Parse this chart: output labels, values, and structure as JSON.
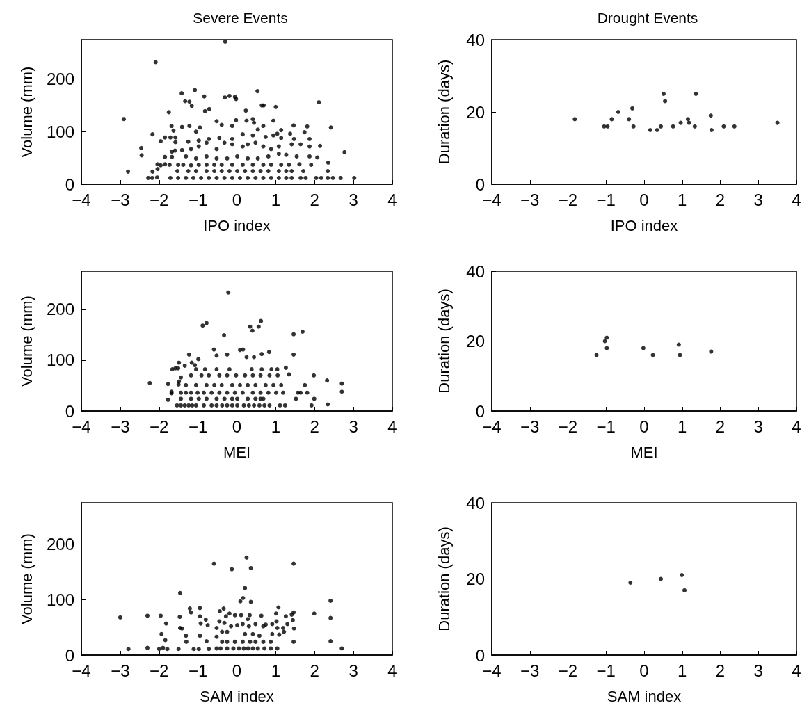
{
  "chart_data": [
    {
      "type": "scatter",
      "title": "Severe Events",
      "xlabel": "IPO index",
      "ylabel": "Volume (mm)",
      "color": "#000000",
      "marker": "circle",
      "xlim": [
        -4,
        4
      ],
      "xticks": [
        {
          "value": -4,
          "label": "−4"
        },
        {
          "value": -3,
          "label": "−3"
        },
        {
          "value": -2,
          "label": "−2"
        },
        {
          "value": -1,
          "label": "−1"
        },
        0,
        1,
        2,
        3,
        4
      ],
      "ylim": [
        0,
        275
      ],
      "yticks": [
        0,
        100,
        200
      ],
      "x": [
        -0.3,
        -2.09,
        -2.91,
        -2.8,
        -2.46,
        -2.45,
        -2.17,
        -2.28,
        -2.18,
        -2.05,
        -2.17,
        -2.04,
        -2.04,
        -1.96,
        -1.85,
        -1.73,
        -1.96,
        -1.85,
        -1.75,
        -1.71,
        -1.68,
        -1.63,
        -1.58,
        -1.58,
        -1.85,
        -1.67,
        -1.67,
        -1.59,
        -1.71,
        -1.51,
        -1.31,
        -1.12,
        -0.92,
        -0.72,
        -0.52,
        -0.32,
        -0.12,
        0.08,
        0.28,
        0.48,
        0.68,
        0.88,
        1.08,
        1.27,
        1.41,
        1.64,
        1.77,
        2.04,
        2.17,
        2.34,
        2.47,
        2.67,
        3.02,
        -1.53,
        -1.25,
        -1.05,
        -0.78,
        -0.58,
        -0.39,
        -0.19,
        0.01,
        0.21,
        0.41,
        0.61,
        0.81,
        1.08,
        1.27,
        1.41,
        1.71,
        2.34,
        -1.51,
        -1.38,
        -1.18,
        -0.98,
        -0.78,
        -0.58,
        -0.39,
        -0.12,
        0.15,
        0.41,
        0.68,
        0.88,
        1.14,
        1.34,
        1.61,
        1.91,
        2.35,
        -1.31,
        -1.05,
        -0.78,
        -0.52,
        -0.25,
        0.01,
        0.28,
        0.54,
        0.81,
        1.08,
        1.27,
        1.54,
        1.87,
        2.07,
        -1.41,
        -1.18,
        -0.98,
        -0.78,
        -0.52,
        -0.32,
        -0.12,
        0.15,
        0.28,
        0.48,
        0.68,
        0.88,
        1.08,
        1.41,
        1.64,
        1.87,
        2.14,
        2.77,
        -1.25,
        -0.98,
        -0.72,
        -0.45,
        -0.12,
        0.15,
        0.41,
        0.74,
        0.94,
        1.14,
        1.37,
        1.47,
        1.74,
        1.87,
        -1.41,
        -1.22,
        -1.05,
        -0.95,
        -0.52,
        -0.39,
        -0.12,
        -0.02,
        0.25,
        0.41,
        0.44,
        0.54,
        0.68,
        0.94,
        1.04,
        1.14,
        1.46,
        1.81,
        2.42,
        -1.42,
        -1.33,
        -1.22,
        -1.16,
        -1.08,
        -0.84,
        -0.82,
        -0.71,
        -0.31,
        -0.19,
        -0.05,
        -0.02,
        0.23,
        0.53,
        0.64,
        0.69,
        1.0,
        2.11
      ],
      "values": [
        271,
        232,
        124,
        24,
        69,
        55,
        95,
        12,
        12,
        13,
        24,
        29,
        38,
        36,
        38,
        37,
        82,
        89,
        137,
        89,
        111,
        102,
        80,
        89,
        52,
        52,
        62,
        64,
        12,
        12,
        12,
        12,
        12,
        12,
        12,
        12,
        12,
        12,
        12,
        12,
        12,
        12,
        12,
        12,
        12,
        12,
        12,
        12,
        12,
        12,
        12,
        12,
        12,
        25,
        25,
        25,
        25,
        25,
        25,
        25,
        25,
        25,
        25,
        25,
        25,
        25,
        25,
        25,
        25,
        25,
        37,
        37,
        36,
        37,
        37,
        37,
        37,
        37,
        37,
        37,
        37,
        37,
        37,
        37,
        38,
        37,
        41,
        53,
        49,
        53,
        49,
        49,
        53,
        49,
        49,
        53,
        58,
        56,
        53,
        53,
        51,
        65,
        67,
        72,
        79,
        67,
        79,
        76,
        72,
        76,
        79,
        72,
        67,
        72,
        76,
        76,
        72,
        73,
        61,
        81,
        83,
        86,
        88,
        86,
        95,
        93,
        90,
        93,
        88,
        96,
        86,
        99,
        86,
        109,
        111,
        100,
        108,
        120,
        113,
        111,
        122,
        121,
        124,
        117,
        104,
        111,
        121,
        96,
        103,
        112,
        110,
        108,
        173,
        158,
        157,
        149,
        179,
        167,
        139,
        143,
        165,
        168,
        166,
        162,
        140,
        177,
        150,
        150,
        147,
        156
      ]
    },
    {
      "type": "scatter",
      "title": "Drought Events",
      "xlabel": "IPO index",
      "ylabel": "Duration (days)",
      "color": "#000000",
      "marker": "circle",
      "xlim": [
        -4,
        4
      ],
      "xticks": [
        {
          "value": -4,
          "label": "−4"
        },
        {
          "value": -3,
          "label": "−3"
        },
        {
          "value": -2,
          "label": "−2"
        },
        {
          "value": -1,
          "label": "−1"
        },
        0,
        1,
        2,
        3,
        4
      ],
      "ylim": [
        0,
        40
      ],
      "yticks": [
        0,
        20,
        40
      ],
      "x": [
        -1.82,
        -1.05,
        -0.96,
        -0.85,
        -0.68,
        -0.4,
        -0.31,
        -0.28,
        0.16,
        0.34,
        0.44,
        0.51,
        0.55,
        0.76,
        0.96,
        1.15,
        1.18,
        1.33,
        1.36,
        1.75,
        1.77,
        2.09,
        2.37,
        3.5
      ],
      "values": [
        18,
        16,
        16,
        18,
        20,
        18,
        21,
        16,
        15,
        15,
        16,
        25,
        23,
        16,
        17,
        18,
        17,
        16,
        25,
        19,
        15,
        16,
        16,
        17
      ]
    },
    {
      "type": "scatter",
      "xlabel": "MEI",
      "ylabel": "Volume (mm)",
      "color": "#000000",
      "marker": "circle",
      "xlim": [
        -4,
        4
      ],
      "xticks": [
        {
          "value": -4,
          "label": "−4"
        },
        {
          "value": -3,
          "label": "−3"
        },
        {
          "value": -2,
          "label": "−2"
        },
        {
          "value": -1,
          "label": "−1"
        },
        0,
        1,
        2,
        3,
        4
      ],
      "ylim": [
        0,
        275
      ],
      "yticks": [
        0,
        100,
        200
      ],
      "x": [
        -2.24,
        -1.77,
        -1.77,
        -1.68,
        -1.68,
        -1.66,
        -1.58,
        -1.49,
        -1.51,
        -1.5,
        -1.49,
        -1.44,
        -1.23,
        -1.16,
        -0.99,
        -1.34,
        -1.08,
        -0.88,
        -0.78,
        -0.33,
        -0.22,
        0.34,
        0.4,
        0.56,
        0.62,
        1.46,
        1.69,
        1.46,
        -0.59,
        -0.52,
        -0.25,
        0.08,
        0.16,
        0.25,
        0.44,
        0.64,
        0.83,
        -1.54,
        -1.44,
        -1.34,
        -1.24,
        -1.15,
        -1.05,
        -0.85,
        -0.65,
        -0.52,
        -0.38,
        -0.25,
        -0.12,
        0.01,
        0.18,
        0.31,
        0.44,
        0.58,
        0.71,
        0.84,
        1.11,
        1.24,
        1.92,
        2.34,
        -1.44,
        -1.18,
        -0.98,
        -0.78,
        -0.52,
        -0.32,
        -0.12,
        0.01,
        0.28,
        0.48,
        0.61,
        0.68,
        1.52,
        1.99,
        -1.44,
        -1.31,
        -1.18,
        -1.01,
        -0.85,
        -0.65,
        -0.45,
        -0.25,
        -0.05,
        0.15,
        0.41,
        0.61,
        0.81,
        1.01,
        1.19,
        1.57,
        1.64,
        1.81,
        2.7,
        -1.31,
        -1.05,
        -0.78,
        -0.58,
        -0.39,
        -0.12,
        0.08,
        0.28,
        0.48,
        0.74,
        0.94,
        1.14,
        1.75,
        2.7,
        -1.18,
        -0.91,
        -0.72,
        -0.45,
        -0.25,
        -0.02,
        0.21,
        0.41,
        0.61,
        0.84,
        1.05,
        1.34,
        1.98,
        2.32,
        -1.05,
        -0.82,
        -0.52,
        -0.19,
        0.38,
        0.64,
        0.89,
        1.04,
        1.26
      ],
      "values": [
        55,
        53,
        22,
        38,
        35,
        82,
        84,
        95,
        84,
        52,
        58,
        66,
        111,
        95,
        102,
        89,
        90,
        168,
        173,
        149,
        233,
        166,
        158,
        166,
        177,
        151,
        156,
        111,
        121,
        109,
        111,
        120,
        121,
        106,
        106,
        112,
        116,
        11,
        11,
        11,
        11,
        11,
        11,
        11,
        11,
        11,
        11,
        11,
        11,
        11,
        11,
        11,
        11,
        11,
        11,
        11,
        11,
        11,
        11,
        13,
        24,
        24,
        24,
        24,
        24,
        24,
        24,
        24,
        24,
        24,
        24,
        24,
        24,
        24,
        36,
        36,
        36,
        36,
        36,
        36,
        36,
        36,
        36,
        36,
        36,
        36,
        36,
        36,
        36,
        36,
        36,
        36,
        38,
        51,
        51,
        51,
        51,
        51,
        51,
        51,
        51,
        51,
        51,
        51,
        51,
        51,
        54,
        70,
        70,
        70,
        70,
        70,
        70,
        70,
        70,
        70,
        70,
        70,
        72,
        70,
        60,
        82,
        82,
        82,
        82,
        82,
        82,
        82,
        82,
        85
      ]
    },
    {
      "type": "scatter",
      "xlabel": "MEI",
      "ylabel": "Duration (days)",
      "color": "#000000",
      "marker": "circle",
      "xlim": [
        -4,
        4
      ],
      "xticks": [
        {
          "value": -4,
          "label": "−4"
        },
        {
          "value": -3,
          "label": "−3"
        },
        {
          "value": -2,
          "label": "−2"
        },
        {
          "value": -1,
          "label": "−1"
        },
        0,
        1,
        2,
        3,
        4
      ],
      "ylim": [
        0,
        40
      ],
      "yticks": [
        0,
        20,
        40
      ],
      "x": [
        -1.25,
        -1.03,
        -0.98,
        -0.98,
        -0.02,
        0.23,
        0.91,
        0.94,
        1.76
      ],
      "values": [
        16,
        20,
        21,
        18,
        18,
        16,
        19,
        16,
        17
      ]
    },
    {
      "type": "scatter",
      "xlabel": "SAM index",
      "ylabel": "Volume (mm)",
      "color": "#000000",
      "marker": "circle",
      "xlim": [
        -4,
        4
      ],
      "xticks": [
        {
          "value": -4,
          "label": "−4"
        },
        {
          "value": -3,
          "label": "−3"
        },
        {
          "value": -2,
          "label": "−2"
        },
        {
          "value": -1,
          "label": "−1"
        },
        0,
        1,
        2,
        3,
        4
      ],
      "ylim": [
        0,
        275
      ],
      "yticks": [
        0,
        100,
        200
      ],
      "x": [
        -3.0,
        -2.79,
        -2.3,
        -2.3,
        -2.0,
        -1.96,
        -1.9,
        -1.79,
        -1.94,
        -1.82,
        -1.84,
        -1.5,
        -1.46,
        -1.47,
        -1.46,
        -1.41,
        -1.31,
        -1.3,
        -1.21,
        -1.18,
        -1.11,
        -0.98,
        -0.95,
        -0.95,
        -0.93,
        -0.95,
        -0.8,
        -0.75,
        -0.78,
        -0.72,
        -0.59,
        -0.13,
        0.25,
        0.36,
        1.46,
        0.21,
        0.16,
        0.09,
        0.36,
        -0.44,
        -0.34,
        -0.52,
        -0.45,
        -0.38,
        -0.52,
        -0.32,
        -0.25,
        -0.28,
        -0.19,
        -0.15,
        -0.05,
        0.01,
        0.11,
        0.15,
        0.21,
        0.28,
        0.33,
        0.31,
        0.41,
        0.48,
        0.58,
        0.63,
        0.68,
        0.74,
        0.91,
        0.91,
        1.01,
        1.02,
        1.07,
        1.04,
        1.09,
        1.19,
        1.21,
        1.26,
        1.3,
        1.41,
        1.46,
        1.44,
        1.47,
        1.46,
        1.99,
        2.41,
        2.41,
        2.41,
        2.7,
        -0.52,
        -0.42,
        -0.25,
        -0.09,
        0.05,
        0.18,
        0.29,
        0.41,
        0.54,
        0.71,
        0.87,
        1.04,
        -0.38,
        -0.25,
        -0.05,
        0.15,
        0.34,
        0.48,
        0.68,
        0.87
      ],
      "values": [
        68,
        11,
        13,
        71,
        11,
        71,
        13,
        11,
        38,
        57,
        27,
        11,
        112,
        69,
        49,
        48,
        35,
        24,
        84,
        77,
        11,
        11,
        85,
        70,
        57,
        35,
        64,
        54,
        25,
        11,
        165,
        155,
        176,
        157,
        165,
        121,
        103,
        97,
        96,
        79,
        84,
        49,
        61,
        42,
        33,
        58,
        42,
        70,
        75,
        52,
        72,
        54,
        72,
        56,
        38,
        65,
        72,
        52,
        38,
        56,
        35,
        71,
        52,
        55,
        56,
        38,
        75,
        61,
        86,
        49,
        37,
        49,
        42,
        70,
        56,
        73,
        77,
        63,
        48,
        24,
        75,
        98,
        67,
        25,
        12,
        12,
        12,
        12,
        12,
        12,
        12,
        12,
        12,
        12,
        12,
        12,
        12,
        24,
        24,
        24,
        24,
        24,
        24,
        24,
        24
      ]
    },
    {
      "type": "scatter",
      "xlabel": "SAM index",
      "ylabel": "Duration (days)",
      "color": "#000000",
      "marker": "circle",
      "xlim": [
        -4,
        4
      ],
      "xticks": [
        {
          "value": -4,
          "label": "−4"
        },
        {
          "value": -3,
          "label": "−3"
        },
        {
          "value": -2,
          "label": "−2"
        },
        {
          "value": -1,
          "label": "−1"
        },
        0,
        1,
        2,
        3,
        4
      ],
      "ylim": [
        0,
        40
      ],
      "yticks": [
        0,
        20,
        40
      ],
      "x": [
        -0.36,
        0.44,
        0.99,
        1.06
      ],
      "values": [
        19,
        20,
        21,
        17
      ]
    }
  ]
}
